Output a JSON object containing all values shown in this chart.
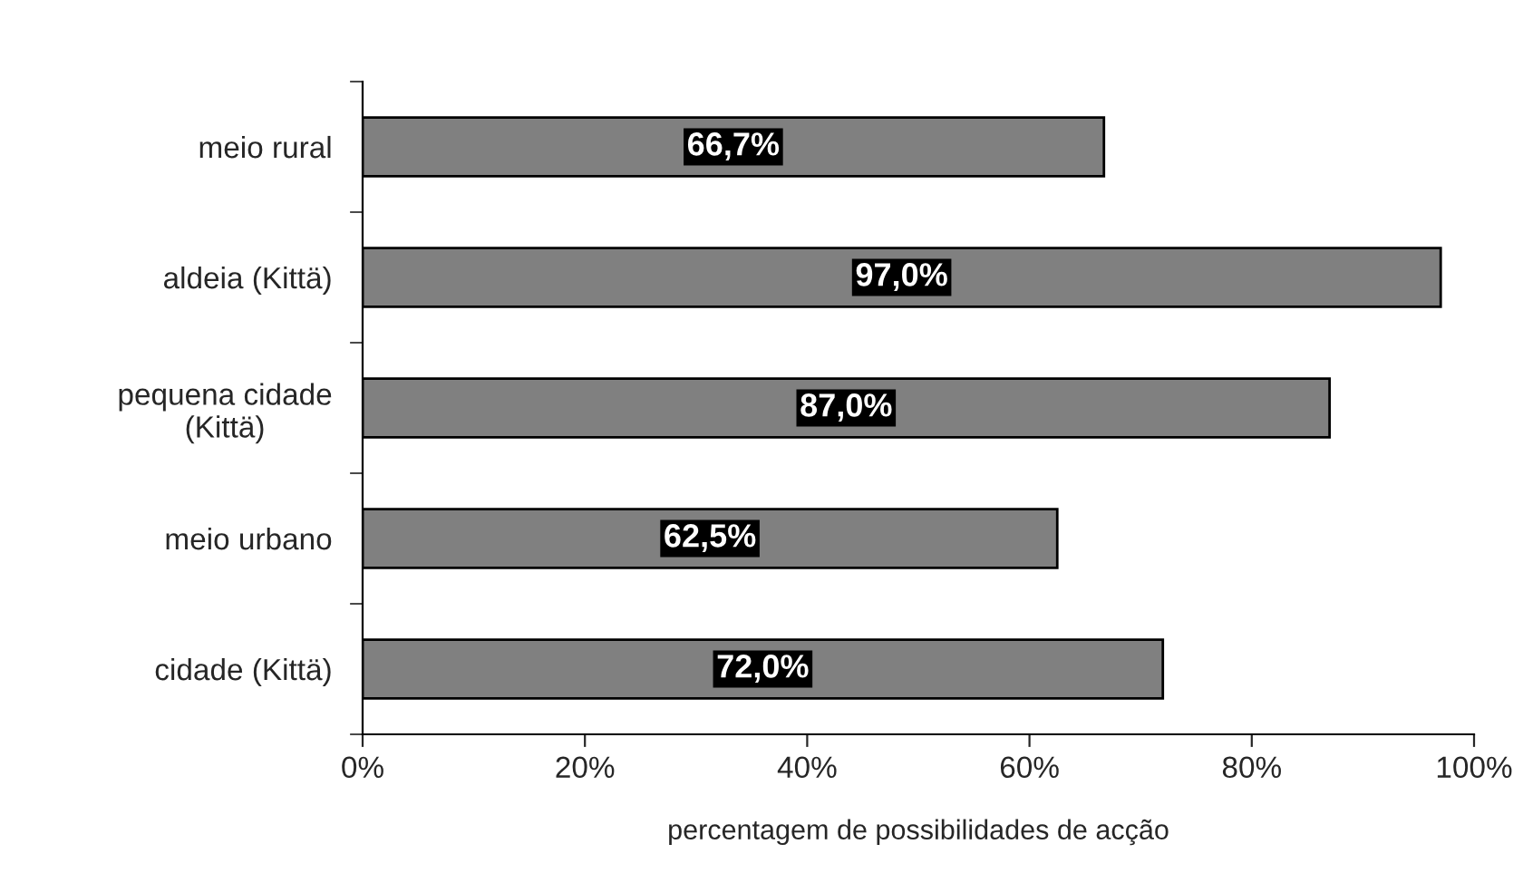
{
  "chart_data": {
    "type": "bar",
    "orientation": "horizontal",
    "xlabel": "percentagem de possibilidades de acção",
    "categories": [
      "meio rural",
      "aldeia (Kittä)",
      "pequena cidade\n(Kittä)",
      "meio urbano",
      "cidade (Kittä)"
    ],
    "values": [
      66.7,
      97.0,
      87.0,
      62.5,
      72.0
    ],
    "value_labels": [
      "66,7%",
      "97,0%",
      "87,0%",
      "62,5%",
      "72,0%"
    ],
    "color": "#808080",
    "xlim": [
      0,
      100
    ],
    "xticks": [
      {
        "value": 0,
        "label": "0%"
      },
      {
        "value": 20,
        "label": "20%"
      },
      {
        "value": 40,
        "label": "40%"
      },
      {
        "value": 60,
        "label": "60%"
      },
      {
        "value": 80,
        "label": "80%"
      },
      {
        "value": 100,
        "label": "100%"
      }
    ],
    "grid": false,
    "legend": false
  }
}
